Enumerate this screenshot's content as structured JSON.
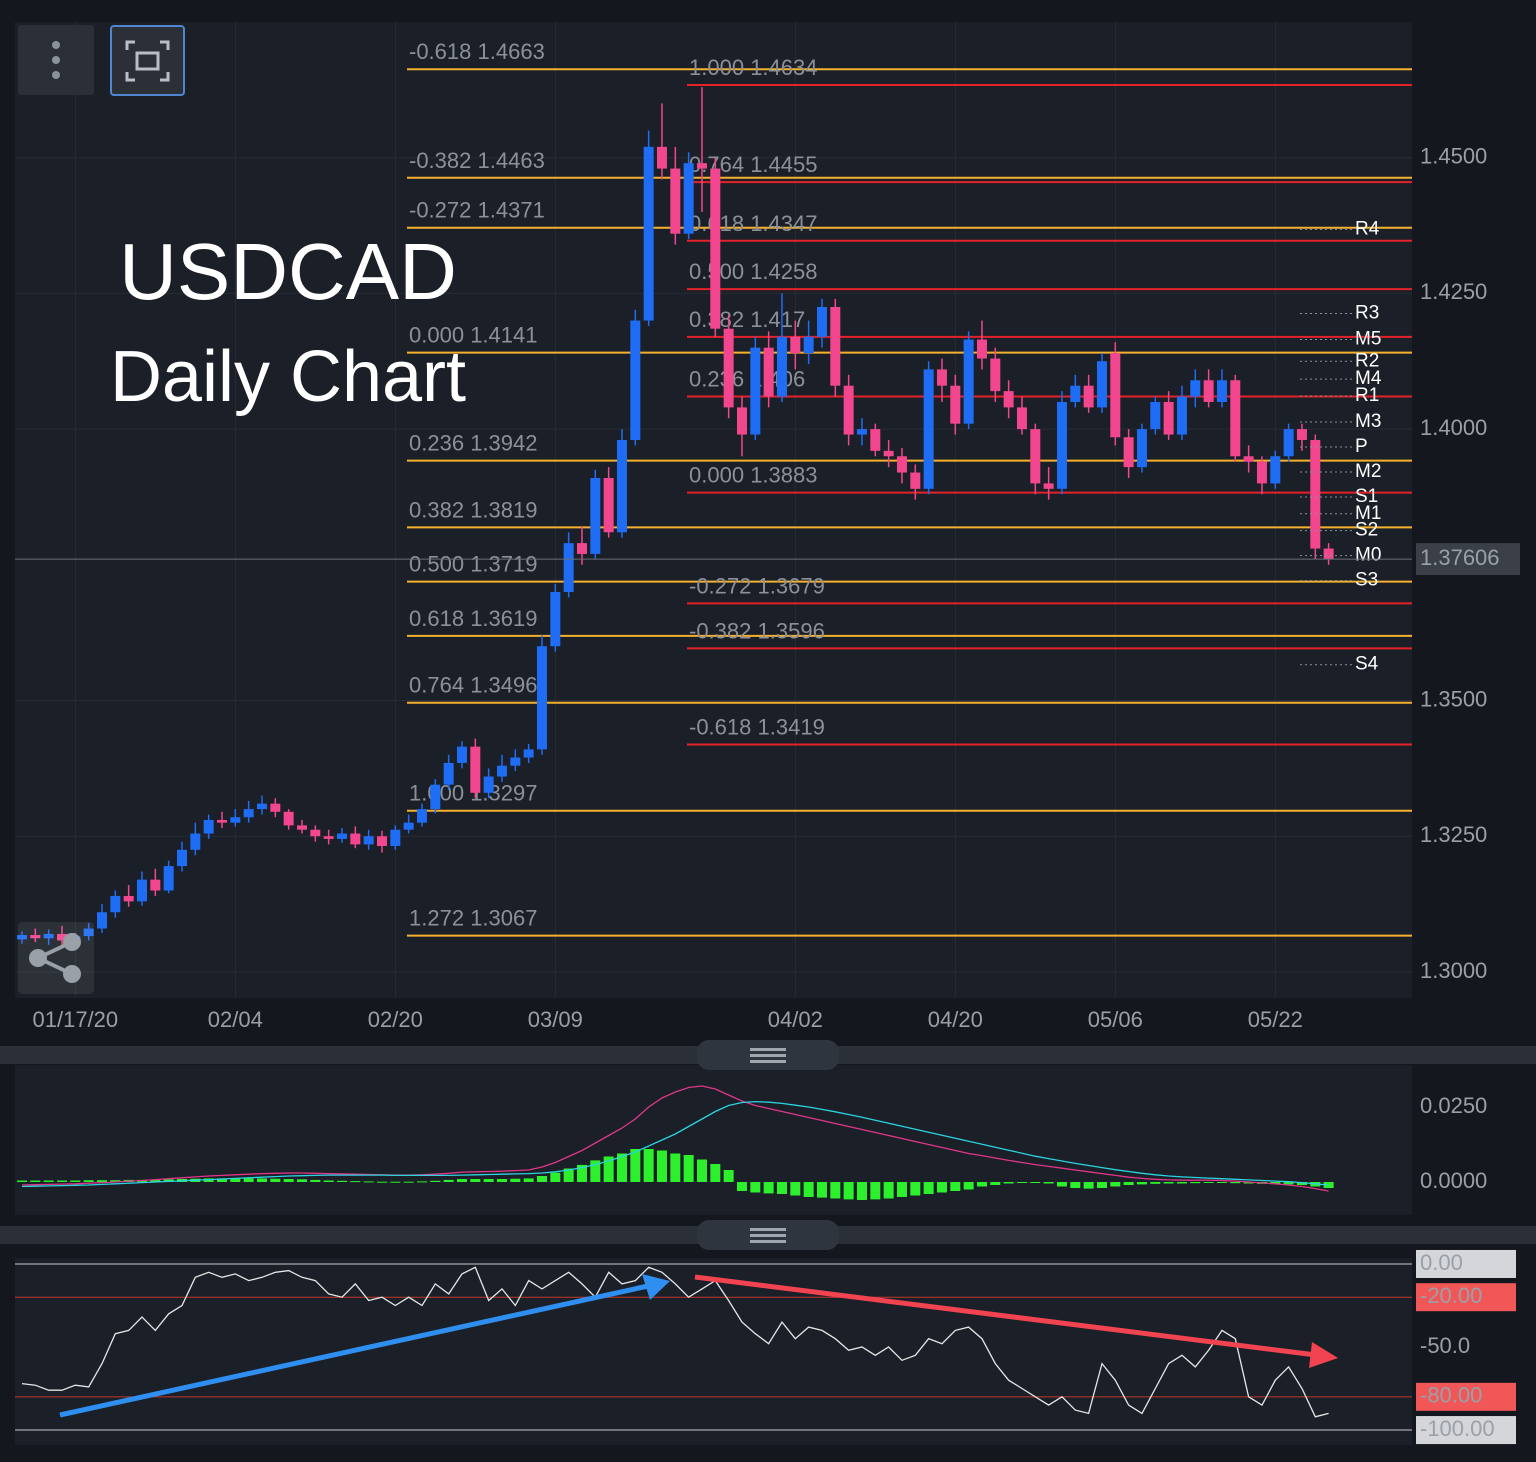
{
  "chart_data": [
    {
      "type": "candlestick",
      "annotations": [
        "USDCAD",
        "Daily Chart"
      ],
      "categories": [
        null,
        null,
        null,
        null,
        "01/17/20",
        null,
        null,
        null,
        null,
        null,
        null,
        null,
        null,
        null,
        null,
        null,
        "02/04",
        null,
        null,
        null,
        null,
        null,
        null,
        null,
        null,
        null,
        null,
        null,
        "02/20",
        null,
        null,
        null,
        null,
        null,
        null,
        null,
        null,
        null,
        null,
        null,
        "03/09",
        null,
        null,
        null,
        null,
        null,
        null,
        null,
        null,
        null,
        null,
        null,
        null,
        null,
        null,
        null,
        null,
        null,
        "04/02",
        null,
        null,
        null,
        null,
        null,
        null,
        null,
        null,
        null,
        null,
        null,
        "04/20",
        null,
        null,
        null,
        null,
        null,
        null,
        null,
        null,
        null,
        null,
        null,
        "05/06",
        null,
        null,
        null,
        null,
        null,
        null,
        null,
        null,
        null,
        null,
        null,
        "05/22",
        null,
        null,
        null,
        null
      ],
      "open": [
        1.306,
        1.3068,
        1.3062,
        1.307,
        1.3058,
        1.3066,
        1.308,
        1.311,
        1.314,
        1.313,
        1.317,
        1.315,
        1.3195,
        1.3225,
        1.3255,
        1.328,
        1.3275,
        1.3285,
        1.33,
        1.331,
        1.3295,
        1.327,
        1.3262,
        1.325,
        1.3245,
        1.3255,
        1.3235,
        1.325,
        1.3232,
        1.3262,
        1.3275,
        1.33,
        1.3345,
        1.3385,
        1.3415,
        1.333,
        1.336,
        1.338,
        1.3395,
        1.341,
        1.36,
        1.37,
        1.379,
        1.377,
        1.391,
        1.381,
        1.398,
        1.42,
        1.452,
        1.448,
        1.436,
        1.449,
        1.448,
        1.4185,
        1.404,
        1.399,
        1.415,
        1.406,
        1.417,
        1.414,
        1.417,
        1.4225,
        1.408,
        1.399,
        1.4,
        1.396,
        1.395,
        1.392,
        1.389,
        1.411,
        1.408,
        1.401,
        1.4165,
        1.413,
        1.407,
        1.404,
        1.4,
        1.39,
        1.389,
        1.405,
        1.408,
        1.404,
        1.414,
        1.3985,
        1.393,
        1.4,
        1.405,
        1.399,
        1.406,
        1.409,
        1.405,
        1.409,
        1.395,
        1.394,
        1.39,
        1.395,
        1.4,
        1.398,
        1.378
      ],
      "close": [
        1.3068,
        1.3062,
        1.307,
        1.3058,
        1.3066,
        1.308,
        1.311,
        1.314,
        1.313,
        1.317,
        1.315,
        1.3195,
        1.3225,
        1.3255,
        1.328,
        1.3275,
        1.3285,
        1.33,
        1.331,
        1.3295,
        1.327,
        1.3262,
        1.325,
        1.3245,
        1.3255,
        1.3235,
        1.325,
        1.3232,
        1.3262,
        1.3275,
        1.33,
        1.3345,
        1.3385,
        1.3415,
        1.333,
        1.336,
        1.338,
        1.3395,
        1.341,
        1.36,
        1.37,
        1.379,
        1.377,
        1.391,
        1.381,
        1.398,
        1.42,
        1.452,
        1.448,
        1.436,
        1.449,
        1.448,
        1.4185,
        1.404,
        1.399,
        1.415,
        1.406,
        1.417,
        1.414,
        1.417,
        1.4225,
        1.408,
        1.399,
        1.4,
        1.396,
        1.395,
        1.392,
        1.389,
        1.411,
        1.408,
        1.401,
        1.4165,
        1.413,
        1.407,
        1.404,
        1.4,
        1.39,
        1.389,
        1.405,
        1.408,
        1.404,
        1.4125,
        1.3985,
        1.393,
        1.4,
        1.405,
        1.399,
        1.406,
        1.409,
        1.405,
        1.409,
        1.395,
        1.394,
        1.39,
        1.395,
        1.4,
        1.398,
        1.378,
        1.3761
      ],
      "high": [
        1.3075,
        1.308,
        1.3078,
        1.3085,
        1.3072,
        1.309,
        1.3125,
        1.315,
        1.316,
        1.3185,
        1.319,
        1.3205,
        1.324,
        1.3275,
        1.329,
        1.3295,
        1.33,
        1.3315,
        1.3325,
        1.332,
        1.33,
        1.328,
        1.327,
        1.3262,
        1.3265,
        1.3268,
        1.3262,
        1.326,
        1.327,
        1.329,
        1.331,
        1.3355,
        1.34,
        1.3425,
        1.343,
        1.3375,
        1.34,
        1.341,
        1.342,
        1.362,
        1.3715,
        1.381,
        1.382,
        1.3925,
        1.393,
        1.4,
        1.422,
        1.455,
        1.46,
        1.452,
        1.451,
        1.463,
        1.45,
        1.421,
        1.406,
        1.417,
        1.418,
        1.425,
        1.42,
        1.42,
        1.424,
        1.424,
        1.41,
        1.402,
        1.401,
        1.398,
        1.3965,
        1.3935,
        1.4125,
        1.413,
        1.41,
        1.418,
        1.42,
        1.415,
        1.409,
        1.406,
        1.401,
        1.393,
        1.407,
        1.41,
        1.41,
        1.414,
        1.416,
        1.4,
        1.401,
        1.406,
        1.407,
        1.408,
        1.411,
        1.411,
        1.411,
        1.41,
        1.397,
        1.395,
        1.396,
        1.401,
        1.401,
        1.399,
        1.379
      ],
      "low": [
        1.3052,
        1.3055,
        1.305,
        1.305,
        1.3045,
        1.3058,
        1.3072,
        1.31,
        1.312,
        1.3122,
        1.314,
        1.3145,
        1.3185,
        1.3215,
        1.3245,
        1.3265,
        1.3268,
        1.3275,
        1.329,
        1.3285,
        1.3262,
        1.3255,
        1.324,
        1.3235,
        1.3238,
        1.3228,
        1.3225,
        1.322,
        1.3225,
        1.3255,
        1.3268,
        1.3292,
        1.3335,
        1.3375,
        1.332,
        1.332,
        1.335,
        1.337,
        1.3385,
        1.34,
        1.359,
        1.369,
        1.375,
        1.376,
        1.38,
        1.38,
        1.397,
        1.419,
        1.446,
        1.434,
        1.435,
        1.44,
        1.417,
        1.402,
        1.395,
        1.398,
        1.404,
        1.405,
        1.411,
        1.412,
        1.415,
        1.406,
        1.397,
        1.397,
        1.395,
        1.393,
        1.39,
        1.387,
        1.388,
        1.405,
        1.399,
        1.4,
        1.411,
        1.405,
        1.402,
        1.399,
        1.388,
        1.387,
        1.388,
        1.404,
        1.403,
        1.403,
        1.397,
        1.391,
        1.392,
        1.399,
        1.398,
        1.398,
        1.404,
        1.404,
        1.404,
        1.394,
        1.392,
        1.388,
        1.389,
        1.394,
        1.396,
        1.376,
        1.375
      ],
      "up_color": "#1f6cf5",
      "down_color": "#f2468f",
      "ylim": [
        1.2952,
        1.475
      ],
      "yticks": [
        {
          "value": 1.45,
          "label": "1.4500"
        },
        {
          "value": 1.425,
          "label": "1.4250"
        },
        {
          "value": 1.4,
          "label": "1.4000"
        },
        {
          "value": 1.35,
          "label": "1.3500"
        },
        {
          "value": 1.325,
          "label": "1.3250"
        },
        {
          "value": 1.3,
          "label": "1.3000"
        }
      ],
      "grid": true,
      "current_price": 1.37606,
      "fib_sets": [
        {
          "color": "#f5b12e",
          "levels": [
            {
              "ratio": "-0.618",
              "price": 1.4663
            },
            {
              "ratio": "-0.382",
              "price": 1.4463
            },
            {
              "ratio": "-0.272",
              "price": 1.4371
            },
            {
              "ratio": "0.000",
              "price": 1.4141
            },
            {
              "ratio": "0.236",
              "price": 1.3942
            },
            {
              "ratio": "0.382",
              "price": 1.3819
            },
            {
              "ratio": "0.500",
              "price": 1.3719
            },
            {
              "ratio": "0.618",
              "price": 1.3619
            },
            {
              "ratio": "0.764",
              "price": 1.3496
            },
            {
              "ratio": "1.000",
              "price": 1.3297
            },
            {
              "ratio": "1.272",
              "price": 1.3067
            }
          ]
        },
        {
          "color": "#e5222a",
          "levels": [
            {
              "ratio": "1.000",
              "price": 1.4634
            },
            {
              "ratio": "0.764",
              "price": 1.4455
            },
            {
              "ratio": "0.618",
              "price": 1.4347
            },
            {
              "ratio": "0.500",
              "price": 1.4258
            },
            {
              "ratio": "0.382",
              "price": 1.417
            },
            {
              "ratio": "0.236",
              "price": 1.406
            },
            {
              "ratio": "0.000",
              "price": 1.3883
            },
            {
              "ratio": "-0.272",
              "price": 1.3679
            },
            {
              "ratio": "-0.382",
              "price": 1.3596
            },
            {
              "ratio": "-0.618",
              "price": 1.3419
            }
          ]
        }
      ],
      "pivots": [
        {
          "label": "R4",
          "price": 1.4368
        },
        {
          "label": "R3",
          "price": 1.4213
        },
        {
          "label": "M5",
          "price": 1.4165
        },
        {
          "label": "R2",
          "price": 1.4125
        },
        {
          "label": "M4",
          "price": 1.4092
        },
        {
          "label": "R1",
          "price": 1.4061
        },
        {
          "label": "M3",
          "price": 1.4013
        },
        {
          "label": "P",
          "price": 1.3967
        },
        {
          "label": "M2",
          "price": 1.3921
        },
        {
          "label": "S1",
          "price": 1.3875
        },
        {
          "label": "M1",
          "price": 1.3844
        },
        {
          "label": "S2",
          "price": 1.3813
        },
        {
          "label": "M0",
          "price": 1.3767
        },
        {
          "label": "S3",
          "price": 1.3721
        },
        {
          "label": "S4",
          "price": 1.3566
        }
      ]
    },
    {
      "type": "bar",
      "color": "#2df02d",
      "values": [
        0.0005,
        0.0005,
        0.0005,
        0.0005,
        0.0005,
        0.0006,
        0.0006,
        0.0006,
        0.0007,
        0.0007,
        0.0008,
        0.0009,
        0.001,
        0.0011,
        0.0012,
        0.0012,
        0.0012,
        0.0012,
        0.0012,
        0.0011,
        0.001,
        0.0009,
        0.0007,
        0.0005,
        0.0004,
        0.0003,
        0.0002,
        0.0001,
        0.0001,
        0.0001,
        0.0002,
        0.0004,
        0.0007,
        0.001,
        0.001,
        0.001,
        0.001,
        0.0011,
        0.0012,
        0.002,
        0.0031,
        0.0045,
        0.0057,
        0.0072,
        0.0085,
        0.0095,
        0.011,
        0.011,
        0.0105,
        0.0095,
        0.009,
        0.0075,
        0.006,
        0.004,
        -0.003,
        -0.0035,
        -0.0038,
        -0.004,
        -0.0045,
        -0.005,
        -0.0052,
        -0.0055,
        -0.0058,
        -0.006,
        -0.0058,
        -0.0055,
        -0.005,
        -0.0045,
        -0.004,
        -0.0035,
        -0.003,
        -0.0025,
        -0.0015,
        -0.001,
        -0.0005,
        0.0,
        0.0,
        -0.0005,
        -0.0015,
        -0.002,
        -0.0022,
        -0.002,
        -0.0015,
        -0.001,
        -0.0008,
        -0.0006,
        -0.0005,
        -0.0005,
        -0.0004,
        -0.0003,
        -0.0003,
        -0.0004,
        -0.0005,
        -0.0006,
        -0.0007,
        -0.0008,
        -0.001,
        -0.0015,
        -0.002
      ],
      "series": [
        {
          "color": "#e0368a",
          "values": [
            -0.001,
            -0.0009,
            -0.0008,
            -0.0007,
            -0.0006,
            -0.0004,
            -0.0002,
            0.0,
            0.0003,
            0.0005,
            0.0008,
            0.0011,
            0.0014,
            0.0017,
            0.002,
            0.0022,
            0.0024,
            0.0026,
            0.0028,
            0.0029,
            0.003,
            0.003,
            0.0029,
            0.0028,
            0.0027,
            0.0026,
            0.0025,
            0.0024,
            0.0023,
            0.0023,
            0.0024,
            0.0026,
            0.0029,
            0.0033,
            0.0034,
            0.0035,
            0.0036,
            0.0038,
            0.004,
            0.005,
            0.0065,
            0.0085,
            0.0105,
            0.013,
            0.0155,
            0.018,
            0.021,
            0.025,
            0.028,
            0.03,
            0.0315,
            0.032,
            0.031,
            0.029,
            0.027,
            0.0255,
            0.0245,
            0.0235,
            0.0225,
            0.0215,
            0.0205,
            0.0195,
            0.0185,
            0.0175,
            0.0165,
            0.0155,
            0.0145,
            0.0135,
            0.0125,
            0.0115,
            0.0105,
            0.0095,
            0.0088,
            0.008,
            0.0072,
            0.0065,
            0.0058,
            0.0052,
            0.0046,
            0.004,
            0.0034,
            0.0028,
            0.0022,
            0.0016,
            0.0012,
            0.0009,
            0.0007,
            0.0006,
            0.0006,
            0.0006,
            0.0005,
            0.0003,
            0.0,
            -0.0003,
            -0.0006,
            -0.001,
            -0.0015,
            -0.0022,
            -0.003
          ]
        },
        {
          "color": "#2ad4e0",
          "values": [
            -0.0015,
            -0.0014,
            -0.0013,
            -0.0012,
            -0.0011,
            -0.001,
            -0.0008,
            -0.0006,
            -0.0004,
            -0.0002,
            0.0,
            0.0002,
            0.0004,
            0.0006,
            0.0008,
            0.001,
            0.0012,
            0.0014,
            0.0016,
            0.0018,
            0.002,
            0.0021,
            0.0022,
            0.0023,
            0.0023,
            0.0023,
            0.0023,
            0.0023,
            0.0022,
            0.0022,
            0.0022,
            0.0022,
            0.0022,
            0.0023,
            0.0024,
            0.0025,
            0.0026,
            0.0027,
            0.0028,
            0.003,
            0.0034,
            0.004,
            0.0048,
            0.0058,
            0.007,
            0.0085,
            0.01,
            0.012,
            0.014,
            0.016,
            0.0185,
            0.021,
            0.0235,
            0.0255,
            0.0265,
            0.0268,
            0.0266,
            0.0262,
            0.0256,
            0.025,
            0.0242,
            0.0234,
            0.0225,
            0.0216,
            0.0206,
            0.0196,
            0.0186,
            0.0176,
            0.0166,
            0.0156,
            0.0146,
            0.0136,
            0.0126,
            0.0116,
            0.0106,
            0.0096,
            0.0086,
            0.0078,
            0.007,
            0.0062,
            0.0055,
            0.0048,
            0.0041,
            0.0035,
            0.0029,
            0.0024,
            0.002,
            0.0017,
            0.0015,
            0.0013,
            0.0011,
            0.0009,
            0.0007,
            0.0005,
            0.0003,
            0.0001,
            -0.0002,
            -0.0006,
            -0.001
          ]
        }
      ],
      "ylim": [
        -0.011,
        0.039
      ],
      "yticks": [
        {
          "value": 0.025,
          "label": "0.0250"
        },
        {
          "value": 0,
          "label": "0.0000"
        }
      ]
    },
    {
      "type": "line",
      "color": "#e6e6e6",
      "values": [
        -72,
        -73,
        -76,
        -76,
        -73,
        -74,
        -60,
        -42,
        -40,
        -32,
        -40,
        -30,
        -25,
        -8,
        -5,
        -8,
        -6,
        -10,
        -8,
        -5,
        -4,
        -8,
        -10,
        -18,
        -20,
        -12,
        -22,
        -20,
        -25,
        -20,
        -25,
        -12,
        -18,
        -6,
        -2,
        -22,
        -15,
        -25,
        -10,
        -15,
        -10,
        -5,
        -12,
        -20,
        -5,
        -12,
        -10,
        -2,
        -5,
        -12,
        -20,
        -15,
        -10,
        -22,
        -35,
        -42,
        -48,
        -35,
        -45,
        -38,
        -40,
        -45,
        -52,
        -50,
        -55,
        -50,
        -58,
        -55,
        -45,
        -48,
        -40,
        -38,
        -45,
        -60,
        -70,
        -75,
        -80,
        -85,
        -80,
        -88,
        -90,
        -60,
        -70,
        -85,
        -90,
        -75,
        -60,
        -55,
        -62,
        -52,
        -40,
        -45,
        -80,
        -85,
        -70,
        -62,
        -75,
        -92,
        -90
      ],
      "ylim": [
        -109,
        3.6
      ],
      "yticks": [
        {
          "value": 0,
          "label": "0.00",
          "color": "#d4d6da"
        },
        {
          "value": -20,
          "label": "-20.00",
          "color": "#f25757"
        },
        {
          "value": -50,
          "label": "-50.0"
        },
        {
          "value": -80,
          "label": "-80.00",
          "color": "#f25757"
        },
        {
          "value": -100,
          "label": "-100.00",
          "color": "#d4d6da"
        }
      ]
    }
  ]
}
